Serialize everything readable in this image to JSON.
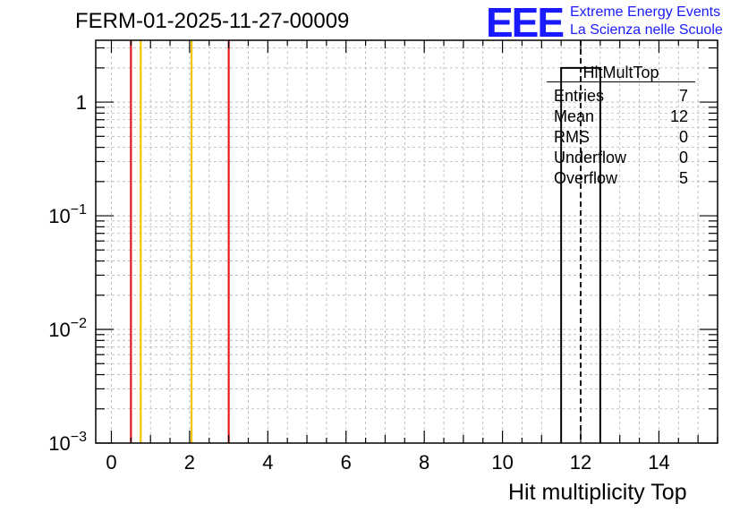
{
  "chart_data": {
    "type": "bar",
    "title": "FERM-01-2025-11-27-00009",
    "xlabel": "Hit multiplicity Top",
    "ylabel": "",
    "yscale": "log",
    "xlim": [
      -0.4,
      15.5
    ],
    "ylim": [
      0.001,
      3.5
    ],
    "bins": [
      {
        "low": 11.5,
        "high": 12.5,
        "count": 2
      }
    ],
    "mean_line": 12,
    "x_ticks": [
      0,
      2,
      4,
      6,
      8,
      10,
      12,
      14
    ],
    "x_tick_labels": [
      "0",
      "2",
      "4",
      "6",
      "8",
      "10",
      "12",
      "14"
    ],
    "y_ticks": [
      0.001,
      0.01,
      0.1,
      1
    ],
    "y_tick_labels": [
      {
        "base": "10",
        "exp": "−3"
      },
      {
        "base": "10",
        "exp": "−2"
      },
      {
        "base": "10",
        "exp": "−1"
      },
      {
        "base": "1",
        "exp": ""
      }
    ],
    "grid": true,
    "vertical_lines": [
      {
        "x": 0.5,
        "color": "#e31a1c"
      },
      {
        "x": 0.75,
        "color": "#f5c400"
      },
      {
        "x": 2.05,
        "color": "#f5c400"
      },
      {
        "x": 3.0,
        "color": "#e31a1c"
      }
    ],
    "stats_box": {
      "title": "HitMultTop",
      "rows": [
        {
          "label": "Entries",
          "value": "7"
        },
        {
          "label": "Mean",
          "value": "12"
        },
        {
          "label": "RMS",
          "value": "0"
        },
        {
          "label": "Underflow",
          "value": "0"
        },
        {
          "label": "Overflow",
          "value": "5"
        }
      ]
    }
  },
  "logo": {
    "text": "EEE",
    "line1": "Extreme Energy Events",
    "line2": "La Scienza nelle Scuole",
    "color": "#1a1aff"
  }
}
